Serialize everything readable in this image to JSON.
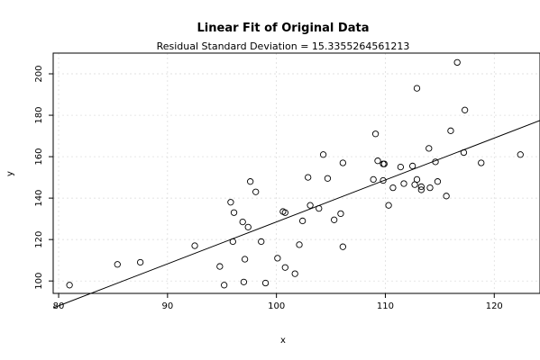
{
  "chart_data": {
    "type": "scatter",
    "title": "Linear Fit of Original Data",
    "subtitle": "Residual Standard Deviation =  15.3355264561213",
    "xlabel": "x",
    "ylabel": "y",
    "xlim": [
      79.5,
      124.2
    ],
    "ylim": [
      94.0,
      210.0
    ],
    "xticks": [
      80,
      90,
      100,
      110,
      120
    ],
    "yticks": [
      100,
      120,
      140,
      160,
      180,
      200
    ],
    "grid": true,
    "fit_line": {
      "x": [
        79.5,
        124.2
      ],
      "y": [
        87.0,
        177.5
      ]
    },
    "points": [
      {
        "x": 81.0,
        "y": 98.0
      },
      {
        "x": 85.4,
        "y": 108.0
      },
      {
        "x": 87.5,
        "y": 109.0
      },
      {
        "x": 92.5,
        "y": 117.0
      },
      {
        "x": 94.8,
        "y": 107.0
      },
      {
        "x": 95.2,
        "y": 98.0
      },
      {
        "x": 95.8,
        "y": 138.0
      },
      {
        "x": 96.0,
        "y": 119.0
      },
      {
        "x": 96.1,
        "y": 133.0
      },
      {
        "x": 96.9,
        "y": 128.5
      },
      {
        "x": 97.0,
        "y": 99.5
      },
      {
        "x": 97.1,
        "y": 110.5
      },
      {
        "x": 97.4,
        "y": 126.0
      },
      {
        "x": 97.6,
        "y": 148.0
      },
      {
        "x": 98.1,
        "y": 143.0
      },
      {
        "x": 98.6,
        "y": 119.0
      },
      {
        "x": 99.0,
        "y": 99.0
      },
      {
        "x": 100.1,
        "y": 111.0
      },
      {
        "x": 100.6,
        "y": 133.5
      },
      {
        "x": 100.8,
        "y": 133.0
      },
      {
        "x": 100.8,
        "y": 106.5
      },
      {
        "x": 101.7,
        "y": 103.5
      },
      {
        "x": 102.1,
        "y": 117.5
      },
      {
        "x": 102.4,
        "y": 129.0
      },
      {
        "x": 102.9,
        "y": 150.0
      },
      {
        "x": 103.1,
        "y": 136.5
      },
      {
        "x": 103.9,
        "y": 135.0
      },
      {
        "x": 104.3,
        "y": 161.0
      },
      {
        "x": 104.7,
        "y": 149.5
      },
      {
        "x": 105.3,
        "y": 129.5
      },
      {
        "x": 105.9,
        "y": 132.5
      },
      {
        "x": 106.1,
        "y": 157.0
      },
      {
        "x": 106.1,
        "y": 116.5
      },
      {
        "x": 108.9,
        "y": 149.0
      },
      {
        "x": 109.1,
        "y": 171.0
      },
      {
        "x": 109.3,
        "y": 158.0
      },
      {
        "x": 109.8,
        "y": 156.5
      },
      {
        "x": 109.9,
        "y": 156.5
      },
      {
        "x": 109.8,
        "y": 148.5
      },
      {
        "x": 110.3,
        "y": 136.5
      },
      {
        "x": 110.7,
        "y": 145.0
      },
      {
        "x": 111.4,
        "y": 155.0
      },
      {
        "x": 111.7,
        "y": 147.0
      },
      {
        "x": 112.5,
        "y": 155.5
      },
      {
        "x": 112.7,
        "y": 146.5
      },
      {
        "x": 112.9,
        "y": 149.0
      },
      {
        "x": 112.9,
        "y": 193.0
      },
      {
        "x": 113.3,
        "y": 145.5
      },
      {
        "x": 113.3,
        "y": 144.0
      },
      {
        "x": 114.0,
        "y": 164.0
      },
      {
        "x": 114.1,
        "y": 145.0
      },
      {
        "x": 114.6,
        "y": 157.5
      },
      {
        "x": 114.8,
        "y": 148.0
      },
      {
        "x": 115.6,
        "y": 141.0
      },
      {
        "x": 116.0,
        "y": 172.5
      },
      {
        "x": 116.6,
        "y": 205.5
      },
      {
        "x": 117.2,
        "y": 162.0
      },
      {
        "x": 117.3,
        "y": 182.5
      },
      {
        "x": 118.8,
        "y": 157.0
      },
      {
        "x": 122.4,
        "y": 161.0
      }
    ]
  }
}
